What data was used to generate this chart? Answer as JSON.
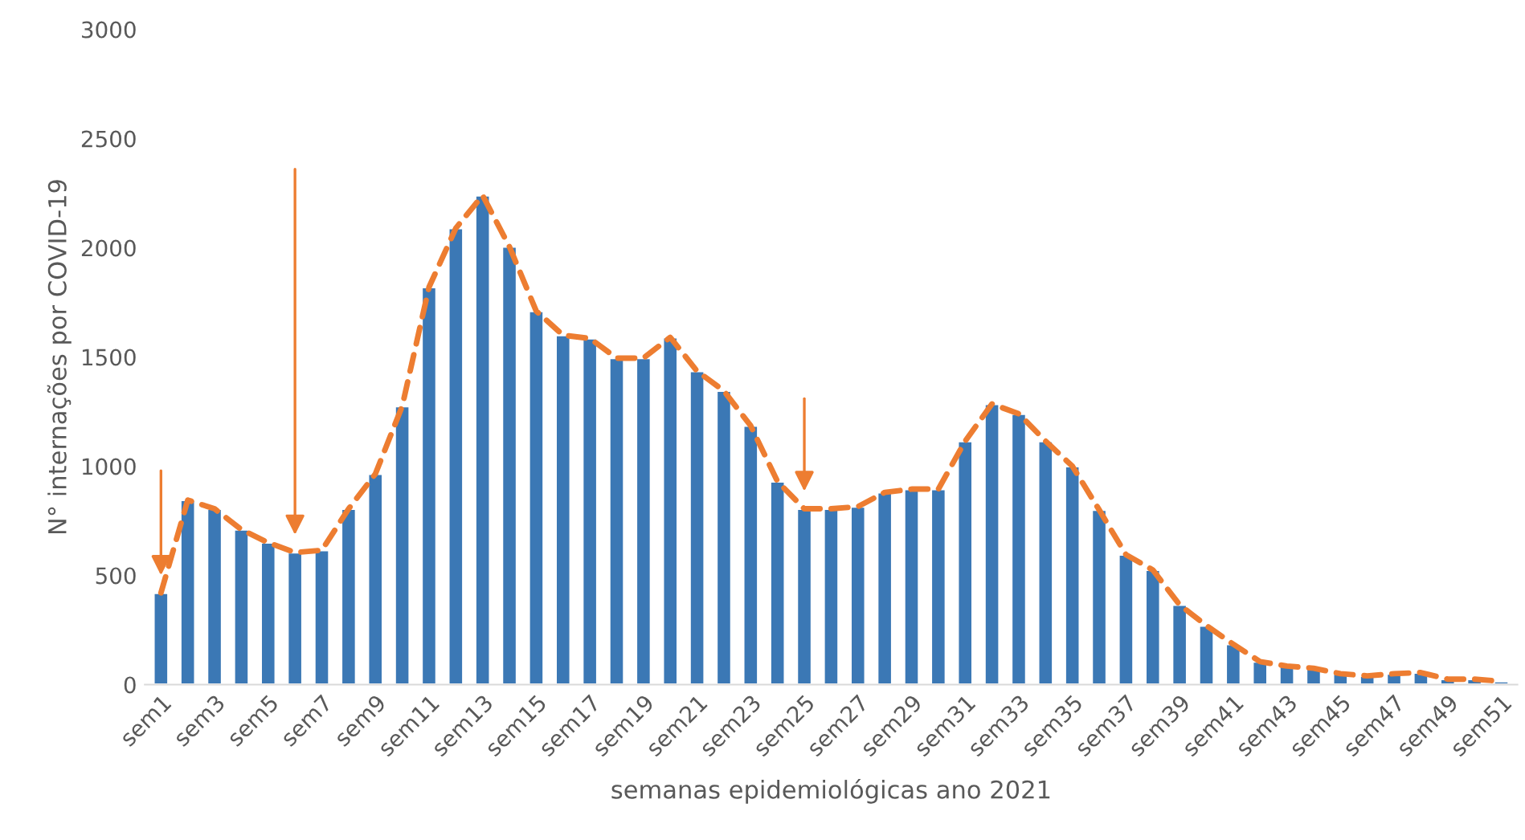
{
  "chart_data": {
    "type": "bar",
    "categories": [
      "sem1",
      null,
      "sem3",
      null,
      "sem5",
      null,
      "sem7",
      null,
      "sem9",
      null,
      "sem11",
      null,
      "sem13",
      null,
      "sem15",
      null,
      "sem17",
      null,
      "sem19",
      null,
      "sem21",
      null,
      "sem23",
      null,
      "sem25",
      null,
      "sem27",
      null,
      "sem29",
      null,
      "sem31",
      null,
      "sem33",
      null,
      "sem35",
      null,
      "sem37",
      null,
      "sem39",
      null,
      "sem41",
      null,
      "sem43",
      null,
      "sem45",
      null,
      "sem47",
      null,
      "sem49",
      null,
      "sem51"
    ],
    "series": [
      {
        "color": "#3b78b5",
        "values": [
          420,
          845,
          805,
          710,
          650,
          605,
          615,
          805,
          965,
          1275,
          1820,
          2090,
          2240,
          2005,
          1710,
          1600,
          1585,
          1495,
          1495,
          1590,
          1435,
          1345,
          1185,
          930,
          805,
          805,
          815,
          880,
          895,
          895,
          1115,
          1285,
          1240,
          1115,
          1000,
          800,
          595,
          525,
          365,
          270,
          185,
          105,
          85,
          75,
          50,
          40,
          50,
          55,
          25,
          25,
          15
        ]
      },
      {
        "type": "line",
        "color": "#ed7d31",
        "line_style": "dashed",
        "marker": "none",
        "values": [
          420,
          845,
          805,
          710,
          650,
          605,
          615,
          805,
          965,
          1275,
          1820,
          2090,
          2240,
          2005,
          1710,
          1600,
          1585,
          1495,
          1495,
          1590,
          1435,
          1345,
          1185,
          930,
          805,
          805,
          815,
          880,
          895,
          895,
          1115,
          1285,
          1240,
          1115,
          1000,
          800,
          595,
          525,
          365,
          270,
          185,
          105,
          85,
          75,
          50,
          40,
          50,
          55,
          25,
          25,
          15
        ]
      }
    ],
    "ylim": [
      0,
      3000
    ],
    "yticks": [
      0,
      500,
      1000,
      1500,
      2000,
      2500,
      3000
    ],
    "xlabel": "semanas epidemiológicas ano 2021",
    "ylabel": "N° internações por COVID-19",
    "grid": false,
    "legend": false
  }
}
